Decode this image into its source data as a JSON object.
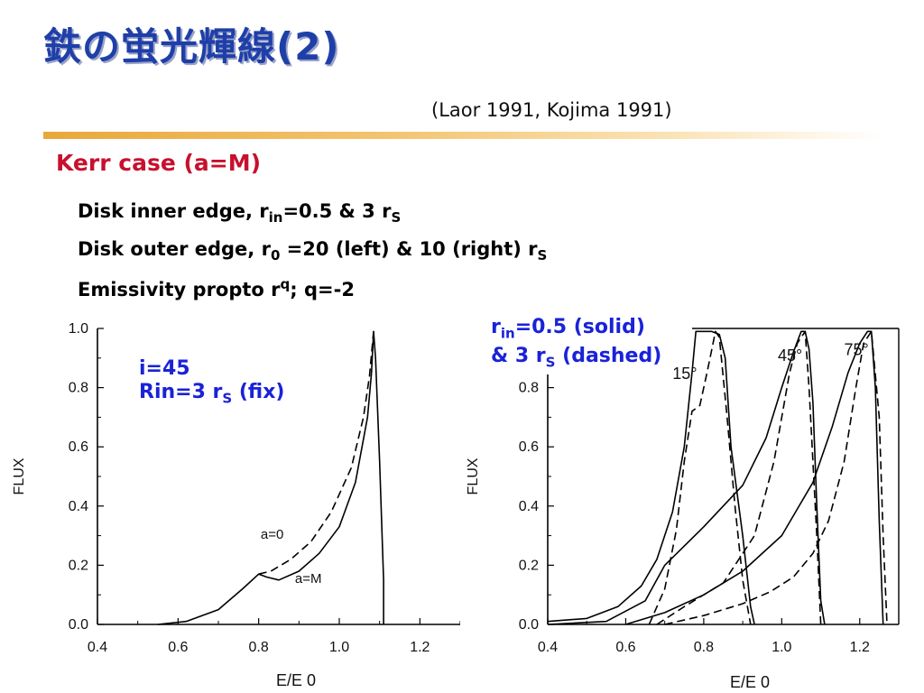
{
  "slide": {
    "title": "鉄の蛍光輝線(2)",
    "citation": "(Laor 1991, Kojima 1991)",
    "heading": "Kerr case (a=M)",
    "bullets": [
      {
        "pre": "Disk inner edge, r",
        "sub": "in",
        "post": "=0.5 & 3 r",
        "sub2": "S"
      },
      {
        "pre": "Disk outer edge, r",
        "sub": "0",
        "post": " =20 (left) & 10 (right) r",
        "sub2": "S"
      },
      {
        "pre": "Emissivity propto r",
        "sup": "q",
        "post": "; q=-2"
      }
    ],
    "left_note": {
      "line1": "i=45",
      "line2_pre": "Rin=3 r",
      "line2_sub": "S",
      "line2_post": " (fix)"
    },
    "right_note": {
      "line1_pre": "r",
      "line1_sub": "in",
      "line1_post": "=0.5 (solid)",
      "line2_pre": "& 3 r",
      "line2_sub": "S",
      "line2_post": " (dashed)"
    }
  },
  "chart_data": [
    {
      "type": "line",
      "ylabel": "FLUX",
      "xlabel": "E/E 0",
      "xlim": [
        0.4,
        1.3
      ],
      "ylim": [
        0.0,
        1.0
      ],
      "x_ticks": [
        "0.4",
        "0.6",
        "0.8",
        "1.0",
        "1.2"
      ],
      "y_ticks": [
        "0.0",
        "0.2",
        "0.4",
        "0.6",
        "0.8",
        "1.0"
      ],
      "annotations": [
        "a=0",
        "a=M"
      ],
      "series": [
        {
          "name": "a=M",
          "style": "solid",
          "x": [
            0.55,
            0.62,
            0.7,
            0.76,
            0.8,
            0.82,
            0.85,
            0.9,
            0.95,
            1.0,
            1.04,
            1.07,
            1.08,
            1.085,
            1.09,
            1.1,
            1.11,
            1.11
          ],
          "y": [
            0.0,
            0.01,
            0.05,
            0.12,
            0.17,
            0.16,
            0.15,
            0.18,
            0.24,
            0.33,
            0.48,
            0.7,
            0.85,
            0.99,
            0.9,
            0.55,
            0.15,
            0.0
          ]
        },
        {
          "name": "a=0",
          "style": "dashed",
          "x": [
            0.8,
            0.83,
            0.88,
            0.93,
            0.98,
            1.03,
            1.06,
            1.075,
            1.085
          ],
          "y": [
            0.17,
            0.18,
            0.22,
            0.28,
            0.38,
            0.53,
            0.7,
            0.84,
            0.99
          ]
        }
      ]
    },
    {
      "type": "line",
      "ylabel": "FLUX",
      "xlabel": "E/E 0",
      "xlim": [
        0.4,
        1.3
      ],
      "ylim": [
        0.0,
        1.0
      ],
      "x_ticks": [
        "0.4",
        "0.6",
        "0.8",
        "1.0",
        "1.2"
      ],
      "y_ticks": [
        "0.0",
        "0.2",
        "0.4",
        "0.6",
        "0.8"
      ],
      "annotations": [
        "15°",
        "45°",
        "75°"
      ],
      "series": [
        {
          "name": "15° solid",
          "style": "solid",
          "x": [
            0.4,
            0.5,
            0.58,
            0.64,
            0.68,
            0.72,
            0.75,
            0.77,
            0.78,
            0.82,
            0.84,
            0.855,
            0.87,
            0.9,
            0.92,
            0.93
          ],
          "y": [
            0.01,
            0.02,
            0.06,
            0.13,
            0.22,
            0.38,
            0.6,
            0.85,
            0.99,
            0.99,
            0.98,
            0.9,
            0.6,
            0.3,
            0.06,
            0.0
          ]
        },
        {
          "name": "15° dashed",
          "style": "dashed",
          "x": [
            0.66,
            0.7,
            0.73,
            0.75,
            0.77,
            0.79,
            0.81,
            0.83,
            0.84,
            0.86,
            0.88,
            0.9,
            0.92
          ],
          "y": [
            0.0,
            0.12,
            0.32,
            0.55,
            0.72,
            0.74,
            0.86,
            0.99,
            0.97,
            0.7,
            0.4,
            0.15,
            0.0
          ]
        },
        {
          "name": "45° solid",
          "style": "solid",
          "x": [
            0.4,
            0.55,
            0.65,
            0.7,
            0.8,
            0.9,
            0.96,
            1.0,
            1.03,
            1.05,
            1.06,
            1.07,
            1.08,
            1.09,
            1.1,
            1.11
          ],
          "y": [
            0.0,
            0.01,
            0.08,
            0.2,
            0.33,
            0.47,
            0.63,
            0.8,
            0.92,
            0.99,
            0.99,
            0.93,
            0.75,
            0.4,
            0.08,
            0.0
          ]
        },
        {
          "name": "45° dashed",
          "style": "dashed",
          "x": [
            0.68,
            0.75,
            0.85,
            0.93,
            0.98,
            1.02,
            1.04,
            1.06,
            1.07,
            1.09,
            1.1
          ],
          "y": [
            0.0,
            0.06,
            0.14,
            0.3,
            0.55,
            0.85,
            0.95,
            0.99,
            0.8,
            0.3,
            0.0
          ]
        },
        {
          "name": "75° solid",
          "style": "solid",
          "x": [
            0.6,
            0.7,
            0.8,
            0.9,
            1.0,
            1.08,
            1.13,
            1.17,
            1.2,
            1.22,
            1.23,
            1.24,
            1.25,
            1.26
          ],
          "y": [
            0.0,
            0.04,
            0.1,
            0.18,
            0.3,
            0.48,
            0.67,
            0.85,
            0.95,
            0.99,
            0.99,
            0.8,
            0.35,
            0.0
          ]
        },
        {
          "name": "75° dashed",
          "style": "dashed",
          "x": [
            0.7,
            0.8,
            0.9,
            0.97,
            1.03,
            1.08,
            1.12,
            1.16,
            1.19,
            1.21,
            1.23,
            1.25,
            1.26,
            1.27
          ],
          "y": [
            0.0,
            0.03,
            0.07,
            0.11,
            0.16,
            0.24,
            0.35,
            0.55,
            0.8,
            0.95,
            0.99,
            0.7,
            0.3,
            0.0
          ]
        }
      ]
    }
  ]
}
